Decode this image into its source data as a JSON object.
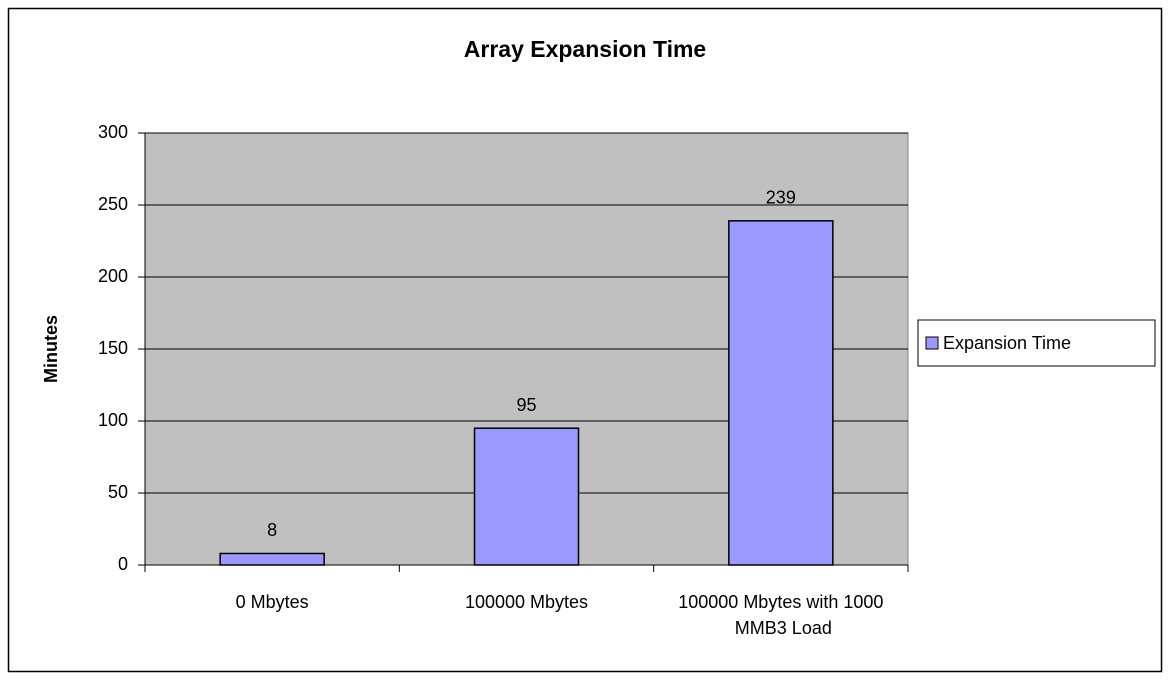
{
  "chart_data": {
    "type": "bar",
    "title": "Array Expansion Time",
    "y_label": "Minutes",
    "categories": [
      "0 Mbytes",
      "100000 Mbytes",
      "100000 Mbytes with 1000 MMB3 Load"
    ],
    "series": [
      {
        "name": "Expansion Time",
        "color": "#9999ff",
        "values": [
          8,
          95,
          239
        ]
      }
    ],
    "ylim": [
      0,
      300
    ],
    "yticks": [
      0,
      50,
      100,
      150,
      200,
      250,
      300
    ],
    "grid": true,
    "legend": "right"
  }
}
